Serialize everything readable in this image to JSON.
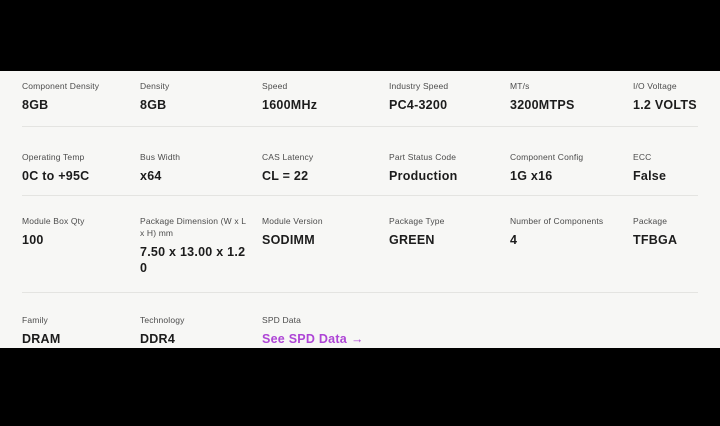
{
  "theme": {
    "page_bg": "#000000",
    "panel_bg": "#f7f7f5",
    "divider": "#e4e4e1",
    "label_color": "#4c4c4c",
    "value_color": "#1c1c1c",
    "link_color": "#ae45d6"
  },
  "rows": [
    {
      "cells": [
        {
          "label": "Component Density",
          "value": "8GB"
        },
        {
          "label": "Density",
          "value": "8GB"
        },
        {
          "label": "Speed",
          "value": "1600MHz"
        },
        {
          "label": "Industry Speed",
          "value": "PC4-3200"
        },
        {
          "label": "MT/s",
          "value": "3200MTPS"
        },
        {
          "label": "I/O Voltage",
          "value": "1.2 VOLTS"
        }
      ]
    },
    {
      "cells": [
        {
          "label": "Operating Temp",
          "value": "0C to +95C"
        },
        {
          "label": "Bus Width",
          "value": "x64"
        },
        {
          "label": "CAS Latency",
          "value": "CL = 22"
        },
        {
          "label": "Part Status Code",
          "value": "Production"
        },
        {
          "label": "Component Config",
          "value": "1G x16"
        },
        {
          "label": "ECC",
          "value": "False"
        }
      ]
    },
    {
      "cells": [
        {
          "label": "Module Box Qty",
          "value": "100"
        },
        {
          "label": "Package Dimension (W x L x H) mm",
          "value": "7.50 x 13.00 x 1.20"
        },
        {
          "label": "Module Version",
          "value": "SODIMM"
        },
        {
          "label": "Package Type",
          "value": "GREEN"
        },
        {
          "label": "Number of Components",
          "value": "4"
        },
        {
          "label": "Package",
          "value": "TFBGA"
        }
      ]
    },
    {
      "cells": [
        {
          "label": "Family",
          "value": "DRAM"
        },
        {
          "label": "Technology",
          "value": "DDR4"
        },
        {
          "label": "SPD Data",
          "value": "See SPD Data",
          "arrow": "→"
        }
      ]
    }
  ]
}
